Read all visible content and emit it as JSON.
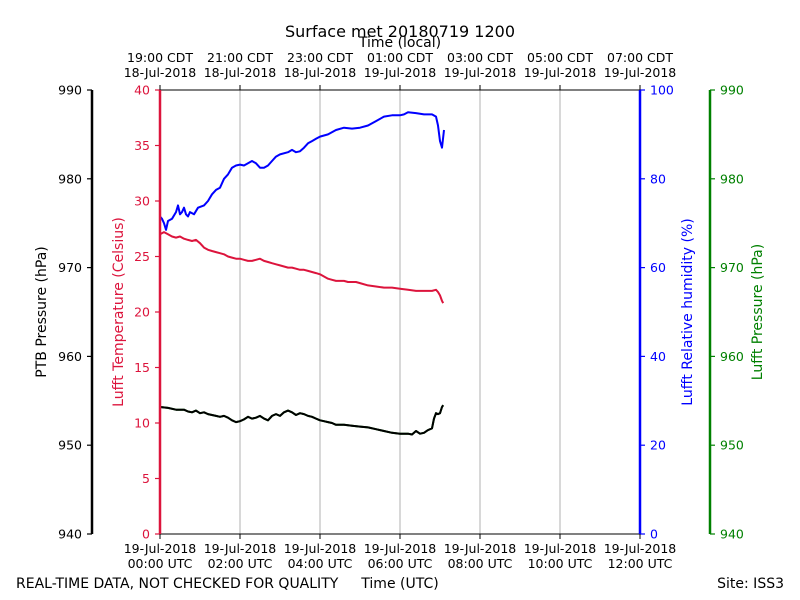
{
  "chart_data": {
    "type": "line",
    "title": "Surface met 20180719 1200",
    "top_axis_label": "Time (local)",
    "bottom_axis_label": "Time (UTC)",
    "footer_left": "REAL-TIME DATA, NOT CHECKED FOR QUALITY",
    "footer_right": "Site: ISS3",
    "x_hours_range": [
      0,
      12
    ],
    "bottom_ticks": [
      {
        "h": 0,
        "l1": "19-Jul-2018",
        "l2": "00:00 UTC"
      },
      {
        "h": 2,
        "l1": "19-Jul-2018",
        "l2": "02:00 UTC"
      },
      {
        "h": 4,
        "l1": "19-Jul-2018",
        "l2": "04:00 UTC"
      },
      {
        "h": 6,
        "l1": "19-Jul-2018",
        "l2": "06:00 UTC"
      },
      {
        "h": 8,
        "l1": "19-Jul-2018",
        "l2": "08:00 UTC"
      },
      {
        "h": 10,
        "l1": "19-Jul-2018",
        "l2": "10:00 UTC"
      },
      {
        "h": 12,
        "l1": "19-Jul-2018",
        "l2": "12:00 UTC"
      }
    ],
    "top_ticks": [
      {
        "h": 0,
        "l1": "19:00 CDT",
        "l2": "18-Jul-2018"
      },
      {
        "h": 2,
        "l1": "21:00 CDT",
        "l2": "18-Jul-2018"
      },
      {
        "h": 4,
        "l1": "23:00 CDT",
        "l2": "18-Jul-2018"
      },
      {
        "h": 6,
        "l1": "01:00 CDT",
        "l2": "19-Jul-2018"
      },
      {
        "h": 8,
        "l1": "03:00 CDT",
        "l2": "19-Jul-2018"
      },
      {
        "h": 10,
        "l1": "05:00 CDT",
        "l2": "19-Jul-2018"
      },
      {
        "h": 12,
        "l1": "07:00 CDT",
        "l2": "19-Jul-2018"
      }
    ],
    "axes": {
      "ptb": {
        "label": "PTB Pressure (hPa)",
        "ylim": [
          940,
          990
        ],
        "ticks": [
          940,
          950,
          960,
          970,
          980,
          990
        ],
        "color": "#000000"
      },
      "temp": {
        "label": "Lufft Temperature (Celsius)",
        "ylim": [
          0,
          40
        ],
        "ticks": [
          0,
          5,
          10,
          15,
          20,
          25,
          30,
          35,
          40
        ],
        "color": "#dc143c"
      },
      "rh": {
        "label": "Lufft Relative humidity (%)",
        "ylim": [
          0,
          100
        ],
        "ticks": [
          0,
          20,
          40,
          60,
          80,
          100
        ],
        "color": "#0000ff"
      },
      "lp": {
        "label": "Lufft Pressure (hPa)",
        "ylim": [
          940,
          990
        ],
        "ticks": [
          940,
          950,
          960,
          970,
          980,
          990
        ],
        "color": "#008000"
      }
    },
    "series": [
      {
        "name": "Lufft Relative humidity",
        "axis": "rh",
        "color": "#0000ff",
        "points": [
          [
            0.0,
            71.5
          ],
          [
            0.05,
            71.0
          ],
          [
            0.1,
            70.0
          ],
          [
            0.15,
            68.5
          ],
          [
            0.2,
            70.5
          ],
          [
            0.3,
            71.0
          ],
          [
            0.4,
            72.5
          ],
          [
            0.45,
            74.0
          ],
          [
            0.5,
            72.0
          ],
          [
            0.55,
            72.5
          ],
          [
            0.6,
            73.5
          ],
          [
            0.65,
            72.0
          ],
          [
            0.7,
            71.5
          ],
          [
            0.75,
            72.5
          ],
          [
            0.85,
            72.0
          ],
          [
            0.95,
            73.5
          ],
          [
            1.1,
            74.0
          ],
          [
            1.2,
            75.0
          ],
          [
            1.3,
            76.5
          ],
          [
            1.4,
            77.5
          ],
          [
            1.5,
            78.0
          ],
          [
            1.6,
            80.0
          ],
          [
            1.7,
            81.0
          ],
          [
            1.8,
            82.5
          ],
          [
            1.9,
            83.0
          ],
          [
            2.0,
            83.2
          ],
          [
            2.1,
            83.0
          ],
          [
            2.2,
            83.5
          ],
          [
            2.3,
            84.0
          ],
          [
            2.4,
            83.5
          ],
          [
            2.5,
            82.5
          ],
          [
            2.6,
            82.5
          ],
          [
            2.7,
            83.0
          ],
          [
            2.8,
            84.0
          ],
          [
            2.9,
            85.0
          ],
          [
            3.0,
            85.5
          ],
          [
            3.2,
            86.0
          ],
          [
            3.3,
            86.5
          ],
          [
            3.4,
            86.0
          ],
          [
            3.5,
            86.2
          ],
          [
            3.6,
            87.0
          ],
          [
            3.7,
            88.0
          ],
          [
            3.8,
            88.5
          ],
          [
            3.9,
            89.0
          ],
          [
            4.0,
            89.5
          ],
          [
            4.2,
            90.0
          ],
          [
            4.4,
            91.0
          ],
          [
            4.6,
            91.5
          ],
          [
            4.8,
            91.3
          ],
          [
            5.0,
            91.5
          ],
          [
            5.2,
            92.0
          ],
          [
            5.4,
            93.0
          ],
          [
            5.6,
            94.0
          ],
          [
            5.8,
            94.3
          ],
          [
            6.0,
            94.3
          ],
          [
            6.1,
            94.5
          ],
          [
            6.2,
            95.0
          ],
          [
            6.4,
            94.8
          ],
          [
            6.6,
            94.5
          ],
          [
            6.8,
            94.5
          ],
          [
            6.9,
            94.0
          ],
          [
            6.95,
            92.0
          ],
          [
            7.0,
            88.5
          ],
          [
            7.05,
            87.0
          ],
          [
            7.1,
            91.0
          ]
        ]
      },
      {
        "name": "Lufft Temperature",
        "axis": "temp",
        "color": "#dc143c",
        "points": [
          [
            0.0,
            27.0
          ],
          [
            0.1,
            27.2
          ],
          [
            0.2,
            27.0
          ],
          [
            0.3,
            26.8
          ],
          [
            0.4,
            26.7
          ],
          [
            0.5,
            26.8
          ],
          [
            0.6,
            26.6
          ],
          [
            0.7,
            26.5
          ],
          [
            0.8,
            26.4
          ],
          [
            0.9,
            26.5
          ],
          [
            1.0,
            26.2
          ],
          [
            1.1,
            25.8
          ],
          [
            1.2,
            25.6
          ],
          [
            1.3,
            25.5
          ],
          [
            1.4,
            25.4
          ],
          [
            1.5,
            25.3
          ],
          [
            1.6,
            25.2
          ],
          [
            1.7,
            25.0
          ],
          [
            1.8,
            24.9
          ],
          [
            1.9,
            24.8
          ],
          [
            2.0,
            24.8
          ],
          [
            2.1,
            24.7
          ],
          [
            2.2,
            24.6
          ],
          [
            2.3,
            24.6
          ],
          [
            2.4,
            24.7
          ],
          [
            2.5,
            24.8
          ],
          [
            2.6,
            24.6
          ],
          [
            2.7,
            24.5
          ],
          [
            2.8,
            24.4
          ],
          [
            2.9,
            24.3
          ],
          [
            3.0,
            24.2
          ],
          [
            3.1,
            24.1
          ],
          [
            3.2,
            24.0
          ],
          [
            3.3,
            24.0
          ],
          [
            3.4,
            23.9
          ],
          [
            3.5,
            23.8
          ],
          [
            3.6,
            23.8
          ],
          [
            3.7,
            23.7
          ],
          [
            3.8,
            23.6
          ],
          [
            3.9,
            23.5
          ],
          [
            4.0,
            23.4
          ],
          [
            4.1,
            23.2
          ],
          [
            4.2,
            23.0
          ],
          [
            4.3,
            22.9
          ],
          [
            4.4,
            22.8
          ],
          [
            4.5,
            22.8
          ],
          [
            4.6,
            22.8
          ],
          [
            4.7,
            22.7
          ],
          [
            4.8,
            22.7
          ],
          [
            4.9,
            22.7
          ],
          [
            5.0,
            22.6
          ],
          [
            5.2,
            22.4
          ],
          [
            5.4,
            22.3
          ],
          [
            5.6,
            22.2
          ],
          [
            5.8,
            22.2
          ],
          [
            6.0,
            22.1
          ],
          [
            6.2,
            22.0
          ],
          [
            6.4,
            21.9
          ],
          [
            6.6,
            21.9
          ],
          [
            6.8,
            21.9
          ],
          [
            6.9,
            22.0
          ],
          [
            6.95,
            21.8
          ],
          [
            7.0,
            21.5
          ],
          [
            7.05,
            21.0
          ],
          [
            7.08,
            20.8
          ]
        ]
      },
      {
        "name": "Lufft Pressure",
        "axis": "lp",
        "color": "#008000",
        "points": [
          [
            0.0,
            954.3
          ],
          [
            0.2,
            954.2
          ],
          [
            0.4,
            954.0
          ],
          [
            0.6,
            954.0
          ],
          [
            0.7,
            953.8
          ],
          [
            0.8,
            953.7
          ],
          [
            0.9,
            953.9
          ],
          [
            1.0,
            953.6
          ],
          [
            1.1,
            953.7
          ],
          [
            1.2,
            953.5
          ],
          [
            1.3,
            953.4
          ],
          [
            1.4,
            953.3
          ],
          [
            1.5,
            953.2
          ],
          [
            1.6,
            953.3
          ],
          [
            1.7,
            953.1
          ],
          [
            1.8,
            952.8
          ],
          [
            1.9,
            952.6
          ],
          [
            2.0,
            952.7
          ],
          [
            2.1,
            952.9
          ],
          [
            2.2,
            953.2
          ],
          [
            2.3,
            953.0
          ],
          [
            2.4,
            953.1
          ],
          [
            2.5,
            953.3
          ],
          [
            2.6,
            953.0
          ],
          [
            2.7,
            952.8
          ],
          [
            2.8,
            953.3
          ],
          [
            2.9,
            953.5
          ],
          [
            3.0,
            953.3
          ],
          [
            3.1,
            953.7
          ],
          [
            3.2,
            953.9
          ],
          [
            3.3,
            953.7
          ],
          [
            3.4,
            953.4
          ],
          [
            3.5,
            953.6
          ],
          [
            3.6,
            953.5
          ],
          [
            3.7,
            953.3
          ],
          [
            3.8,
            953.2
          ],
          [
            3.9,
            953.0
          ],
          [
            4.0,
            952.8
          ],
          [
            4.1,
            952.7
          ],
          [
            4.2,
            952.6
          ],
          [
            4.3,
            952.5
          ],
          [
            4.4,
            952.3
          ],
          [
            4.6,
            952.3
          ],
          [
            4.8,
            952.2
          ],
          [
            5.0,
            952.1
          ],
          [
            5.2,
            952.0
          ],
          [
            5.4,
            951.8
          ],
          [
            5.6,
            951.6
          ],
          [
            5.8,
            951.4
          ],
          [
            6.0,
            951.3
          ],
          [
            6.2,
            951.3
          ],
          [
            6.3,
            951.2
          ],
          [
            6.4,
            951.6
          ],
          [
            6.5,
            951.3
          ],
          [
            6.6,
            951.4
          ],
          [
            6.7,
            951.7
          ],
          [
            6.8,
            951.9
          ],
          [
            6.85,
            953.0
          ],
          [
            6.9,
            953.6
          ],
          [
            6.95,
            953.5
          ],
          [
            7.0,
            953.6
          ],
          [
            7.05,
            954.3
          ],
          [
            7.08,
            954.5
          ]
        ]
      },
      {
        "name": "PTB Pressure",
        "axis": "ptb",
        "color": "#000000",
        "points": [
          [
            0.0,
            954.3
          ],
          [
            0.2,
            954.2
          ],
          [
            0.4,
            954.0
          ],
          [
            0.6,
            954.0
          ],
          [
            0.7,
            953.8
          ],
          [
            0.8,
            953.7
          ],
          [
            0.9,
            953.9
          ],
          [
            1.0,
            953.6
          ],
          [
            1.1,
            953.7
          ],
          [
            1.2,
            953.5
          ],
          [
            1.3,
            953.4
          ],
          [
            1.4,
            953.3
          ],
          [
            1.5,
            953.2
          ],
          [
            1.6,
            953.3
          ],
          [
            1.7,
            953.1
          ],
          [
            1.8,
            952.8
          ],
          [
            1.9,
            952.6
          ],
          [
            2.0,
            952.7
          ],
          [
            2.1,
            952.9
          ],
          [
            2.2,
            953.2
          ],
          [
            2.3,
            953.0
          ],
          [
            2.4,
            953.1
          ],
          [
            2.5,
            953.3
          ],
          [
            2.6,
            953.0
          ],
          [
            2.7,
            952.8
          ],
          [
            2.8,
            953.3
          ],
          [
            2.9,
            953.5
          ],
          [
            3.0,
            953.3
          ],
          [
            3.1,
            953.7
          ],
          [
            3.2,
            953.9
          ],
          [
            3.3,
            953.7
          ],
          [
            3.4,
            953.4
          ],
          [
            3.5,
            953.6
          ],
          [
            3.6,
            953.5
          ],
          [
            3.7,
            953.3
          ],
          [
            3.8,
            953.2
          ],
          [
            3.9,
            953.0
          ],
          [
            4.0,
            952.8
          ],
          [
            4.1,
            952.7
          ],
          [
            4.2,
            952.6
          ],
          [
            4.3,
            952.5
          ],
          [
            4.4,
            952.3
          ],
          [
            4.6,
            952.3
          ],
          [
            4.8,
            952.2
          ],
          [
            5.0,
            952.1
          ],
          [
            5.2,
            952.0
          ],
          [
            5.4,
            951.8
          ],
          [
            5.6,
            951.6
          ],
          [
            5.8,
            951.4
          ],
          [
            6.0,
            951.3
          ],
          [
            6.2,
            951.3
          ],
          [
            6.3,
            951.2
          ],
          [
            6.4,
            951.6
          ],
          [
            6.5,
            951.3
          ],
          [
            6.6,
            951.4
          ],
          [
            6.7,
            951.7
          ],
          [
            6.8,
            951.9
          ],
          [
            6.85,
            953.0
          ],
          [
            6.9,
            953.6
          ],
          [
            6.95,
            953.5
          ],
          [
            7.0,
            953.6
          ],
          [
            7.05,
            954.3
          ],
          [
            7.08,
            954.5
          ]
        ]
      }
    ]
  }
}
